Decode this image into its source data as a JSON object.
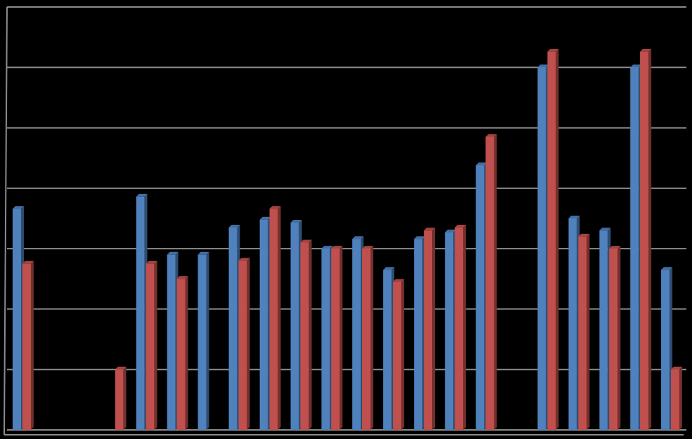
{
  "chart_data": {
    "type": "bar",
    "categories": [
      null,
      null,
      null,
      null,
      null,
      null,
      null,
      null,
      null,
      null,
      null,
      null,
      null,
      null,
      null,
      null,
      null,
      null,
      null,
      null,
      null,
      null
    ],
    "series": [
      {
        "color": "#4f81bd",
        "values": [
          3.66,
          null,
          null,
          null,
          3.86,
          2.9,
          2.9,
          3.35,
          3.48,
          3.43,
          3.0,
          3.16,
          2.65,
          3.16,
          3.27,
          4.38,
          null,
          6.0,
          3.5,
          3.3,
          6.0,
          2.65
        ]
      },
      {
        "color": "#c0504d",
        "values": [
          2.75,
          null,
          null,
          1.0,
          2.75,
          2.5,
          null,
          2.8,
          3.66,
          3.1,
          3.0,
          3.0,
          2.45,
          3.3,
          3.35,
          4.85,
          null,
          6.26,
          3.2,
          3.0,
          6.26,
          1.0
        ]
      }
    ],
    "ylim": [
      0,
      7
    ],
    "yticks": [
      0,
      1,
      2,
      3,
      4,
      5,
      6,
      7
    ],
    "grid": true
  }
}
